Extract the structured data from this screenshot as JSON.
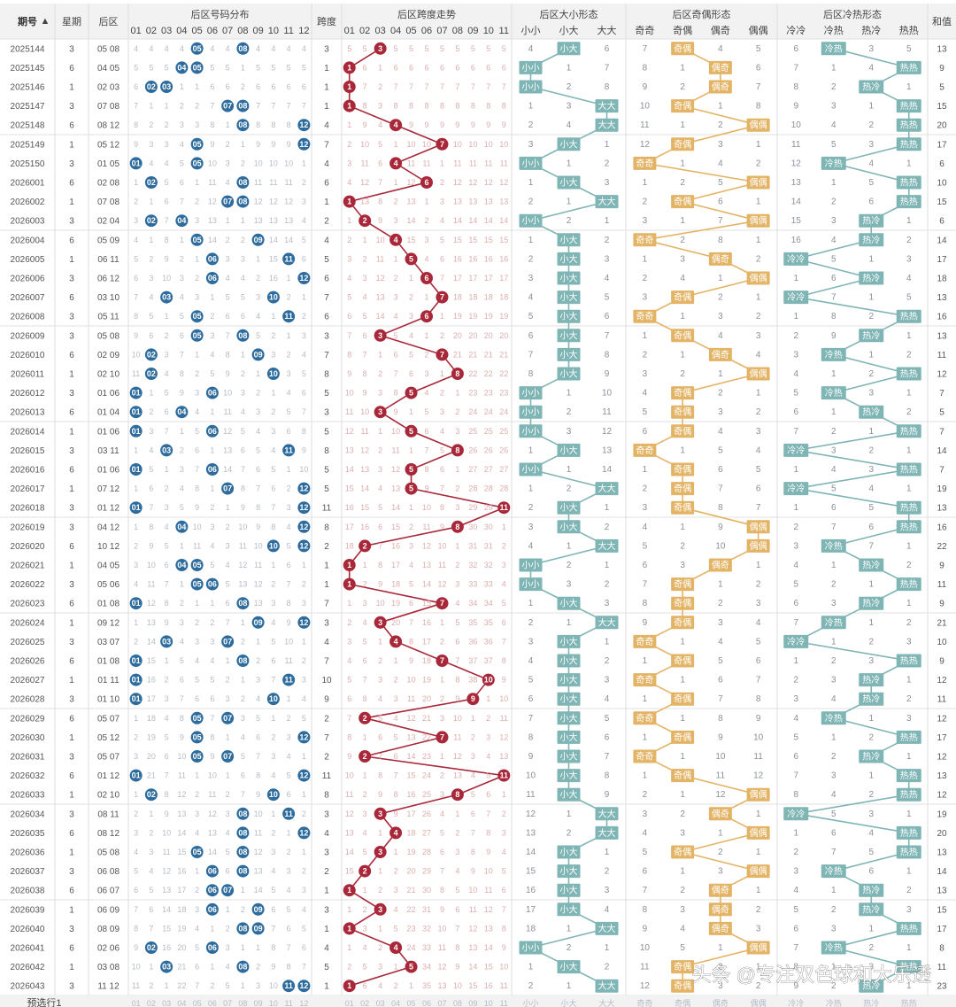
{
  "headers": {
    "period": "期号",
    "weekday": "星期",
    "back": "后区",
    "dist": "后区号码分布",
    "span_col": "跨度",
    "span_trend": "后区跨度走势",
    "size": "后区大小形态",
    "parity": "后区奇偶形态",
    "hot": "后区冷热形态",
    "sum": "和值"
  },
  "number_labels": [
    "01",
    "02",
    "03",
    "04",
    "05",
    "06",
    "07",
    "08",
    "09",
    "10",
    "11",
    "12"
  ],
  "span_labels": [
    "01",
    "02",
    "03",
    "04",
    "05",
    "06",
    "07",
    "08",
    "09",
    "10",
    "11"
  ],
  "size_labels": [
    "小小",
    "小大",
    "大大"
  ],
  "parity_labels": [
    "奇奇",
    "奇偶",
    "偶奇",
    "偶偶"
  ],
  "hot_labels": [
    "冷冷",
    "冷热",
    "热冷",
    "热热"
  ],
  "footer_label": "预选行1",
  "watermark": "头条 @专注双色球和大乐透",
  "colors": {
    "blue_ball": "#2e6c9e",
    "red_ball": "#a8283a",
    "teal": "#7fb5b4",
    "gold": "#e3b466",
    "header_bg": "#f2f2f2"
  },
  "chart_data": {
    "type": "table",
    "rows": [
      {
        "period": "2025144",
        "weekday": "3",
        "nums": [
          5,
          8
        ],
        "span": 3,
        "size": "小大",
        "parity": "奇偶",
        "hot": "冷热",
        "sum": 13
      },
      {
        "period": "2025145",
        "weekday": "6",
        "nums": [
          4,
          5
        ],
        "span": 1,
        "size": "小小",
        "parity": "偶奇",
        "hot": "热热",
        "sum": 9
      },
      {
        "period": "2025146",
        "weekday": "1",
        "nums": [
          2,
          3
        ],
        "span": 1,
        "size": "小小",
        "parity": "偶奇",
        "hot": "热冷",
        "sum": 5
      },
      {
        "period": "2025147",
        "weekday": "3",
        "nums": [
          7,
          8
        ],
        "span": 1,
        "size": "大大",
        "parity": "奇偶",
        "hot": "热热",
        "sum": 15
      },
      {
        "period": "2025148",
        "weekday": "6",
        "nums": [
          8,
          12
        ],
        "span": 4,
        "size": "大大",
        "parity": "偶偶",
        "hot": "热热",
        "sum": 20
      },
      {
        "period": "2025149",
        "weekday": "1",
        "nums": [
          5,
          12
        ],
        "span": 7,
        "size": "小大",
        "parity": "奇偶",
        "hot": "热热",
        "sum": 17
      },
      {
        "period": "2025150",
        "weekday": "3",
        "nums": [
          1,
          5
        ],
        "span": 4,
        "size": "小小",
        "parity": "奇奇",
        "hot": "冷热",
        "sum": 6
      },
      {
        "period": "2026001",
        "weekday": "6",
        "nums": [
          2,
          8
        ],
        "span": 6,
        "size": "小大",
        "parity": "偶偶",
        "hot": "热热",
        "sum": 10
      },
      {
        "period": "2026002",
        "weekday": "1",
        "nums": [
          7,
          8
        ],
        "span": 1,
        "size": "大大",
        "parity": "奇偶",
        "hot": "热热",
        "sum": 15
      },
      {
        "period": "2026003",
        "weekday": "3",
        "nums": [
          2,
          4
        ],
        "span": 2,
        "size": "小小",
        "parity": "偶偶",
        "hot": "热冷",
        "sum": 6
      },
      {
        "period": "2026004",
        "weekday": "6",
        "nums": [
          5,
          9
        ],
        "span": 4,
        "size": "小大",
        "parity": "奇奇",
        "hot": "热冷",
        "sum": 14
      },
      {
        "period": "2026005",
        "weekday": "1",
        "nums": [
          6,
          11
        ],
        "span": 5,
        "size": "小大",
        "parity": "偶奇",
        "hot": "冷冷",
        "sum": 17
      },
      {
        "period": "2026006",
        "weekday": "3",
        "nums": [
          6,
          12
        ],
        "span": 6,
        "size": "小大",
        "parity": "偶偶",
        "hot": "热冷",
        "sum": 18
      },
      {
        "period": "2026007",
        "weekday": "6",
        "nums": [
          3,
          10
        ],
        "span": 7,
        "size": "小大",
        "parity": "奇偶",
        "hot": "冷冷",
        "sum": 13
      },
      {
        "period": "2026008",
        "weekday": "3",
        "nums": [
          5,
          11
        ],
        "span": 6,
        "size": "小大",
        "parity": "奇奇",
        "hot": "热热",
        "sum": 16
      },
      {
        "period": "2026009",
        "weekday": "3",
        "nums": [
          5,
          8
        ],
        "span": 3,
        "size": "小大",
        "parity": "奇偶",
        "hot": "热冷",
        "sum": 13
      },
      {
        "period": "2026010",
        "weekday": "6",
        "nums": [
          2,
          9
        ],
        "span": 7,
        "size": "小大",
        "parity": "偶奇",
        "hot": "冷热",
        "sum": 11
      },
      {
        "period": "2026011",
        "weekday": "1",
        "nums": [
          2,
          10
        ],
        "span": 8,
        "size": "小大",
        "parity": "偶偶",
        "hot": "热热",
        "sum": 12
      },
      {
        "period": "2026012",
        "weekday": "3",
        "nums": [
          1,
          6
        ],
        "span": 5,
        "size": "小小",
        "parity": "奇偶",
        "hot": "冷热",
        "sum": 7
      },
      {
        "period": "2026013",
        "weekday": "6",
        "nums": [
          1,
          4
        ],
        "span": 3,
        "size": "小小",
        "parity": "奇偶",
        "hot": "热冷",
        "sum": 5
      },
      {
        "period": "2026014",
        "weekday": "1",
        "nums": [
          1,
          6
        ],
        "span": 5,
        "size": "小小",
        "parity": "奇偶",
        "hot": "热热",
        "sum": 7
      },
      {
        "period": "2026015",
        "weekday": "3",
        "nums": [
          3,
          11
        ],
        "span": 8,
        "size": "小大",
        "parity": "奇奇",
        "hot": "冷冷",
        "sum": 14
      },
      {
        "period": "2026016",
        "weekday": "6",
        "nums": [
          1,
          6
        ],
        "span": 5,
        "size": "小小",
        "parity": "奇偶",
        "hot": "热热",
        "sum": 7
      },
      {
        "period": "2026017",
        "weekday": "1",
        "nums": [
          7,
          12
        ],
        "span": 5,
        "size": "大大",
        "parity": "奇偶",
        "hot": "冷冷",
        "sum": 19
      },
      {
        "period": "2026018",
        "weekday": "3",
        "nums": [
          1,
          12
        ],
        "span": 11,
        "size": "小大",
        "parity": "奇偶",
        "hot": "热热",
        "sum": 13
      },
      {
        "period": "2026019",
        "weekday": "3",
        "nums": [
          4,
          12
        ],
        "span": 8,
        "size": "小大",
        "parity": "偶偶",
        "hot": "热热",
        "sum": 16
      },
      {
        "period": "2026020",
        "weekday": "6",
        "nums": [
          10,
          12
        ],
        "span": 2,
        "size": "大大",
        "parity": "偶偶",
        "hot": "冷热",
        "sum": 22
      },
      {
        "period": "2026021",
        "weekday": "1",
        "nums": [
          4,
          5
        ],
        "span": 1,
        "size": "小小",
        "parity": "偶奇",
        "hot": "热冷",
        "sum": 9
      },
      {
        "period": "2026022",
        "weekday": "3",
        "nums": [
          5,
          6
        ],
        "span": 1,
        "size": "小小",
        "parity": "奇偶",
        "hot": "热热",
        "sum": 11
      },
      {
        "period": "2026023",
        "weekday": "6",
        "nums": [
          1,
          8
        ],
        "span": 7,
        "size": "小大",
        "parity": "奇偶",
        "hot": "热冷",
        "sum": 9
      },
      {
        "period": "2026024",
        "weekday": "1",
        "nums": [
          9,
          12
        ],
        "span": 3,
        "size": "大大",
        "parity": "奇偶",
        "hot": "冷热",
        "sum": 21
      },
      {
        "period": "2026025",
        "weekday": "3",
        "nums": [
          3,
          7
        ],
        "span": 4,
        "size": "小大",
        "parity": "奇奇",
        "hot": "冷冷",
        "sum": 10
      },
      {
        "period": "2026026",
        "weekday": "6",
        "nums": [
          1,
          8
        ],
        "span": 7,
        "size": "小大",
        "parity": "奇偶",
        "hot": "热热",
        "sum": 9
      },
      {
        "period": "2026027",
        "weekday": "1",
        "nums": [
          1,
          11
        ],
        "span": 10,
        "size": "小大",
        "parity": "奇奇",
        "hot": "热冷",
        "sum": 12
      },
      {
        "period": "2026028",
        "weekday": "3",
        "nums": [
          1,
          10
        ],
        "span": 9,
        "size": "小大",
        "parity": "奇偶",
        "hot": "热冷",
        "sum": 11
      },
      {
        "period": "2026029",
        "weekday": "6",
        "nums": [
          5,
          7
        ],
        "span": 2,
        "size": "小大",
        "parity": "奇奇",
        "hot": "冷热",
        "sum": 12
      },
      {
        "period": "2026030",
        "weekday": "1",
        "nums": [
          5,
          12
        ],
        "span": 7,
        "size": "小大",
        "parity": "奇偶",
        "hot": "热热",
        "sum": 17
      },
      {
        "period": "2026031",
        "weekday": "3",
        "nums": [
          5,
          7
        ],
        "span": 2,
        "size": "小大",
        "parity": "奇奇",
        "hot": "热冷",
        "sum": 12
      },
      {
        "period": "2026032",
        "weekday": "6",
        "nums": [
          1,
          12
        ],
        "span": 11,
        "size": "小大",
        "parity": "奇偶",
        "hot": "热热",
        "sum": 13
      },
      {
        "period": "2026033",
        "weekday": "1",
        "nums": [
          2,
          10
        ],
        "span": 8,
        "size": "小大",
        "parity": "偶偶",
        "hot": "热热",
        "sum": 12
      },
      {
        "period": "2026034",
        "weekday": "3",
        "nums": [
          8,
          11
        ],
        "span": 3,
        "size": "大大",
        "parity": "偶奇",
        "hot": "冷冷",
        "sum": 19
      },
      {
        "period": "2026035",
        "weekday": "6",
        "nums": [
          8,
          12
        ],
        "span": 4,
        "size": "大大",
        "parity": "偶偶",
        "hot": "热热",
        "sum": 20
      },
      {
        "period": "2026036",
        "weekday": "1",
        "nums": [
          5,
          8
        ],
        "span": 3,
        "size": "小大",
        "parity": "奇偶",
        "hot": "热热",
        "sum": 13
      },
      {
        "period": "2026037",
        "weekday": "3",
        "nums": [
          6,
          8
        ],
        "span": 2,
        "size": "小大",
        "parity": "偶偶",
        "hot": "冷热",
        "sum": 14
      },
      {
        "period": "2026038",
        "weekday": "6",
        "nums": [
          6,
          7
        ],
        "span": 1,
        "size": "小大",
        "parity": "偶奇",
        "hot": "热冷",
        "sum": 13
      },
      {
        "period": "2026039",
        "weekday": "1",
        "nums": [
          6,
          9
        ],
        "span": 3,
        "size": "小大",
        "parity": "偶奇",
        "hot": "热冷",
        "sum": 15
      },
      {
        "period": "2026040",
        "weekday": "3",
        "nums": [
          8,
          9
        ],
        "span": 1,
        "size": "大大",
        "parity": "偶奇",
        "hot": "热热",
        "sum": 17
      },
      {
        "period": "2026041",
        "weekday": "6",
        "nums": [
          2,
          6
        ],
        "span": 4,
        "size": "小小",
        "parity": "偶偶",
        "hot": "冷热",
        "sum": 8
      },
      {
        "period": "2026042",
        "weekday": "1",
        "nums": [
          3,
          8
        ],
        "span": 5,
        "size": "小大",
        "parity": "奇偶",
        "hot": "热热",
        "sum": 11
      },
      {
        "period": "2026043",
        "weekday": "3",
        "nums": [
          11,
          12
        ],
        "span": 1,
        "size": "大大",
        "parity": "奇偶",
        "hot": "热冷",
        "sum": 23
      }
    ]
  }
}
